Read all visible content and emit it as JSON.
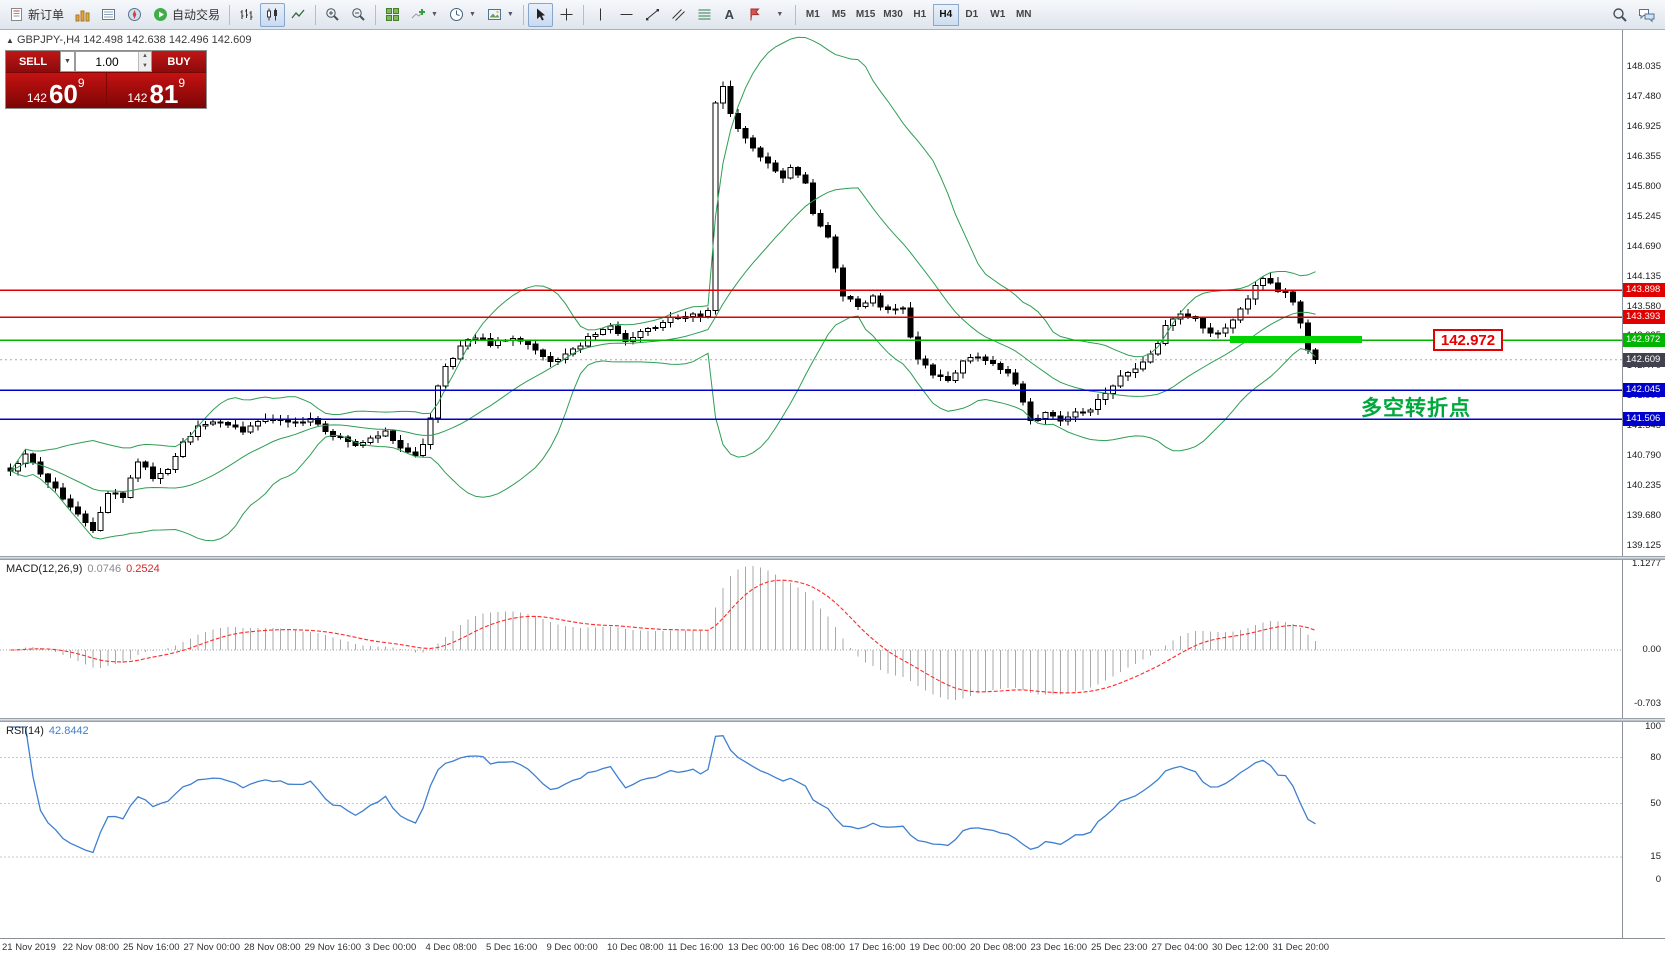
{
  "toolbar": {
    "new_order_label": "新订单",
    "auto_trading_label": "自动交易",
    "timeframes": [
      "M1",
      "M5",
      "M15",
      "M30",
      "H1",
      "H4",
      "D1",
      "W1",
      "MN"
    ],
    "active_timeframe": "H4",
    "icons": [
      "new-order-icon",
      "market-watch-icon",
      "data-window-icon",
      "navigator-icon",
      "autotrade-icon",
      "bar-chart-icon",
      "candlestick-chart-icon",
      "line-chart-icon",
      "zoom-in-icon",
      "zoom-out-icon",
      "tile-windows-icon",
      "indicators-icon",
      "period-icon",
      "template-icon",
      "cursor-icon",
      "crosshair-icon",
      "vertical-line-icon",
      "horizontal-line-icon",
      "trendline-icon",
      "channel-icon",
      "fibonacci-icon",
      "text-icon",
      "arrow-label-icon",
      "draw-more-icon",
      "search-icon",
      "chat-icon"
    ]
  },
  "trade_panel": {
    "sell_label": "SELL",
    "buy_label": "BUY",
    "volume": "1.00",
    "sell_price": {
      "figure": "142",
      "pips": "60",
      "point": "9"
    },
    "buy_price": {
      "figure": "142",
      "pips": "81",
      "point": "9"
    }
  },
  "chart_header": {
    "symbol_info": "GBPJPY-,H4  142.498 142.638 142.496 142.609"
  },
  "annotations": {
    "turning_point": "多空转折点",
    "price_tag": "142.972"
  },
  "price_axis_ticks": [
    "148.035",
    "147.480",
    "146.925",
    "146.355",
    "145.800",
    "145.245",
    "144.690",
    "144.135",
    "143.580",
    "143.025",
    "142.470",
    "141.900",
    "141.345",
    "140.790",
    "140.235",
    "139.680",
    "139.125"
  ],
  "time_axis": [
    "21 Nov 2019",
    "22 Nov 08:00",
    "25 Nov 16:00",
    "27 Nov 00:00",
    "28 Nov 08:00",
    "29 Nov 16:00",
    "3 Dec 00:00",
    "4 Dec 08:00",
    "5 Dec 16:00",
    "9 Dec 00:00",
    "10 Dec 08:00",
    "11 Dec 16:00",
    "13 Dec 00:00",
    "16 Dec 08:00",
    "17 Dec 16:00",
    "19 Dec 00:00",
    "20 Dec 08:00",
    "23 Dec 16:00",
    "25 Dec 23:00",
    "27 Dec 04:00",
    "30 Dec 12:00",
    "31 Dec 20:00"
  ],
  "macd_panel": {
    "name": "MACD(12,26,9)",
    "value_main": "0.0746",
    "value_signal": "0.2524",
    "axis": [
      "1.1277",
      "0.00",
      "-0.703"
    ]
  },
  "rsi_panel": {
    "name": "RSI(14)",
    "value": "42.8442",
    "axis": [
      "100",
      "80",
      "50",
      "15",
      "0"
    ],
    "level_lines": [
      80,
      50,
      15
    ]
  },
  "colors": {
    "up_candle": "#ffffff",
    "down_candle": "#000000",
    "bollinger": "#2e9e53",
    "macd_histogram": "#a8a8a8",
    "macd_signal": "#ff2a2a",
    "rsi_line": "#3f7fd0",
    "level_red": "#e00000",
    "level_blue": "#0000cc",
    "level_green": "#00d400",
    "bid_label": "#42424e",
    "annotation_green": "#00a83c"
  },
  "chart_data": {
    "type": "candlestick",
    "symbol": "GBPJPY-",
    "timeframe": "H4",
    "ohlc_header": {
      "open": 142.498,
      "high": 142.638,
      "low": 142.496,
      "close": 142.609
    },
    "bid": 142.609,
    "num_candles": 175,
    "price_range_visible": [
      139.125,
      148.035
    ],
    "close_anchors": [
      [
        0,
        140.55
      ],
      [
        2,
        140.9
      ],
      [
        4,
        140.45
      ],
      [
        6,
        140.2
      ],
      [
        8,
        139.85
      ],
      [
        10,
        139.6
      ],
      [
        11,
        139.45
      ],
      [
        12,
        139.8
      ],
      [
        13,
        140.15
      ],
      [
        15,
        140.05
      ],
      [
        17,
        140.75
      ],
      [
        19,
        140.4
      ],
      [
        21,
        140.55
      ],
      [
        23,
        141.1
      ],
      [
        25,
        141.35
      ],
      [
        28,
        141.45
      ],
      [
        31,
        141.3
      ],
      [
        34,
        141.55
      ],
      [
        37,
        141.45
      ],
      [
        40,
        141.5
      ],
      [
        43,
        141.2
      ],
      [
        46,
        141.0
      ],
      [
        48,
        141.15
      ],
      [
        50,
        141.25
      ],
      [
        52,
        141.0
      ],
      [
        54,
        140.85
      ],
      [
        55,
        141.0
      ],
      [
        56,
        141.55
      ],
      [
        57,
        142.1
      ],
      [
        58,
        142.45
      ],
      [
        60,
        142.85
      ],
      [
        62,
        143.05
      ],
      [
        64,
        142.9
      ],
      [
        66,
        143.0
      ],
      [
        68,
        142.95
      ],
      [
        70,
        142.8
      ],
      [
        72,
        142.55
      ],
      [
        74,
        142.7
      ],
      [
        76,
        142.9
      ],
      [
        78,
        143.1
      ],
      [
        80,
        143.2
      ],
      [
        82,
        142.95
      ],
      [
        84,
        143.1
      ],
      [
        86,
        143.2
      ],
      [
        88,
        143.35
      ],
      [
        90,
        143.45
      ],
      [
        92,
        143.4
      ],
      [
        93,
        143.5
      ],
      [
        94,
        147.35
      ],
      [
        95,
        147.7
      ],
      [
        96,
        147.2
      ],
      [
        97,
        146.9
      ],
      [
        99,
        146.5
      ],
      [
        101,
        146.3
      ],
      [
        103,
        146.0
      ],
      [
        104,
        146.15
      ],
      [
        106,
        145.9
      ],
      [
        107,
        145.3
      ],
      [
        109,
        144.9
      ],
      [
        110,
        144.3
      ],
      [
        111,
        143.8
      ],
      [
        113,
        143.6
      ],
      [
        115,
        143.75
      ],
      [
        117,
        143.5
      ],
      [
        119,
        143.55
      ],
      [
        120,
        143.0
      ],
      [
        121,
        142.6
      ],
      [
        123,
        142.35
      ],
      [
        125,
        142.25
      ],
      [
        127,
        142.55
      ],
      [
        129,
        142.7
      ],
      [
        131,
        142.5
      ],
      [
        133,
        142.35
      ],
      [
        134,
        142.2
      ],
      [
        135,
        141.8
      ],
      [
        136,
        141.5
      ],
      [
        138,
        141.6
      ],
      [
        140,
        141.45
      ],
      [
        142,
        141.6
      ],
      [
        144,
        141.7
      ],
      [
        146,
        142.0
      ],
      [
        148,
        142.3
      ],
      [
        150,
        142.45
      ],
      [
        152,
        142.7
      ],
      [
        154,
        143.2
      ],
      [
        156,
        143.45
      ],
      [
        158,
        143.35
      ],
      [
        160,
        143.1
      ],
      [
        162,
        143.2
      ],
      [
        164,
        143.55
      ],
      [
        166,
        143.95
      ],
      [
        167,
        144.1
      ],
      [
        168,
        144.0
      ],
      [
        169,
        143.85
      ],
      [
        170,
        143.9
      ],
      [
        171,
        143.7
      ],
      [
        172,
        143.3
      ],
      [
        173,
        142.75
      ],
      [
        174,
        142.609
      ]
    ],
    "indicators": [
      {
        "name": "Bollinger Bands",
        "period": 20,
        "deviation": 2
      },
      {
        "name": "MACD",
        "fast": 12,
        "slow": 26,
        "signal": 9
      },
      {
        "name": "RSI",
        "period": 14
      }
    ],
    "levels": [
      {
        "price": 143.898,
        "label": "143.898",
        "color": "#e00000",
        "style": "solid"
      },
      {
        "price": 143.393,
        "label": "143.393",
        "color": "#e00000",
        "style": "solid"
      },
      {
        "price": 142.972,
        "label": "142.972",
        "color": "#00b400",
        "style": "solid",
        "thick_segment": true,
        "tag": true
      },
      {
        "price": 142.609,
        "label": "142.609",
        "color": "#42424e",
        "style": "bid"
      },
      {
        "price": 142.045,
        "label": "142.045",
        "color": "#0000cc",
        "style": "solid"
      },
      {
        "price": 141.506,
        "label": "141.506",
        "color": "#0000cc",
        "style": "solid"
      }
    ]
  }
}
